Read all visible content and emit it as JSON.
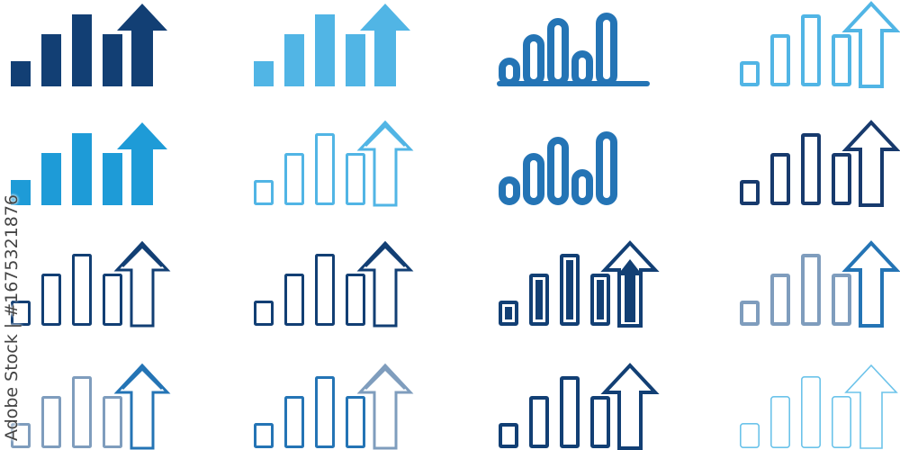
{
  "watermark": "Adobe Stock | #1675321876",
  "colors": {
    "navy": "#123f74",
    "light_blue": "#51b5e5",
    "blue": "#2474b5",
    "bright_blue": "#1e9bd7",
    "dark_navy": "#173a6d",
    "gray_blue": "#7f9dbd",
    "pale_blue": "#6cc3ea"
  },
  "icons": [
    {
      "name": "growth-chart-filled-navy-icon",
      "style": "filled",
      "color": "navy",
      "arrow": "single"
    },
    {
      "name": "growth-chart-filled-light-icon",
      "style": "filled",
      "color": "light_blue",
      "arrow": "single"
    },
    {
      "name": "bar-chart-rounded-baseline-icon",
      "style": "rounded",
      "color": "blue",
      "arrow": "none",
      "baseline": true
    },
    {
      "name": "growth-chart-outline-light-icon",
      "style": "outline-thick",
      "color": "light_blue",
      "arrow": "single"
    },
    {
      "name": "growth-chart-filled-bright-icon",
      "style": "filled",
      "color": "bright_blue",
      "arrow": "single"
    },
    {
      "name": "growth-chart-thin-outline-light-icon",
      "style": "outline",
      "color": "light_blue",
      "arrow": "double"
    },
    {
      "name": "bar-chart-rounded-icon",
      "style": "rounded",
      "color": "blue",
      "arrow": "none"
    },
    {
      "name": "growth-chart-outline-dark-icon",
      "style": "outline-thick",
      "color": "dark_navy",
      "arrow": "single"
    },
    {
      "name": "growth-chart-outline-navy-icon",
      "style": "outline",
      "color": "navy",
      "arrow": "double"
    },
    {
      "name": "growth-chart-outline-navy-alt-icon",
      "style": "outline",
      "color": "navy",
      "arrow": "double"
    },
    {
      "name": "growth-chart-inner-filled-icon",
      "style": "inner",
      "color": "navy",
      "arrow": "inner"
    },
    {
      "name": "growth-chart-gray-blue-icon",
      "style": "outline-thick",
      "color": "gray_blue",
      "arrow": "single",
      "arrow_color": "blue"
    },
    {
      "name": "growth-chart-gradient-outline-icon",
      "style": "outline",
      "color": "gray_blue",
      "arrow": "double",
      "arrow_color": "blue"
    },
    {
      "name": "growth-chart-gradient-outline-alt-icon",
      "style": "outline",
      "color": "blue",
      "arrow": "double",
      "arrow_color": "gray_blue"
    },
    {
      "name": "growth-chart-outline-bold-navy-icon",
      "style": "outline-thick",
      "color": "navy",
      "arrow": "single"
    },
    {
      "name": "growth-chart-thin-pale-icon",
      "style": "thin",
      "color": "pale_blue",
      "arrow": "single"
    }
  ]
}
